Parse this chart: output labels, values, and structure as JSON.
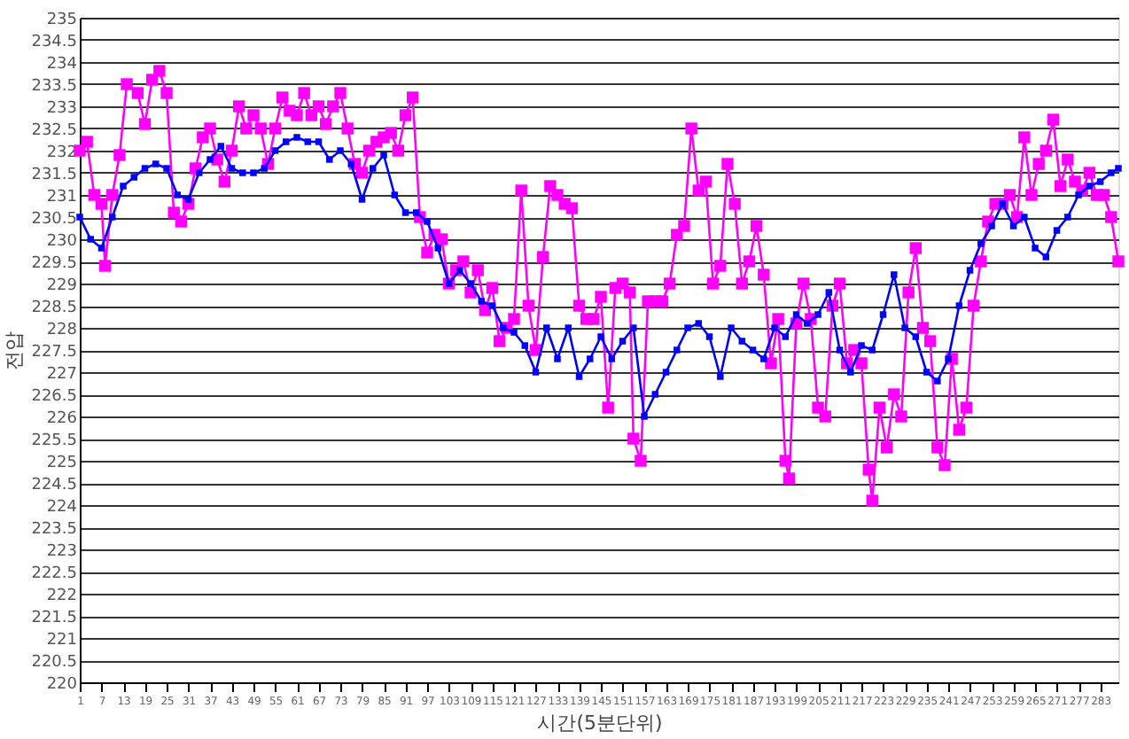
{
  "chart_data": {
    "type": "line",
    "xlabel": "시간(5분단위)",
    "ylabel": "전압",
    "xlim": [
      1,
      288
    ],
    "xticks": [
      1,
      7,
      13,
      19,
      25,
      31,
      37,
      43,
      49,
      55,
      61,
      67,
      73,
      79,
      85,
      91,
      97,
      103,
      109,
      115,
      121,
      127,
      133,
      139,
      145,
      151,
      157,
      163,
      169,
      175,
      181,
      187,
      193,
      199,
      205,
      211,
      217,
      223,
      229,
      235,
      241,
      247,
      253,
      259,
      265,
      271,
      277,
      283
    ],
    "ylim": [
      220,
      235
    ],
    "yticks": [
      220,
      220.5,
      221,
      221.5,
      222,
      222.5,
      223,
      223.5,
      224,
      224.5,
      225,
      225.5,
      226,
      226.5,
      227,
      227.5,
      228,
      228.5,
      229,
      229.5,
      230,
      230.5,
      231,
      231.5,
      232,
      232.5,
      233,
      233.5,
      234,
      234.5,
      235
    ],
    "grid": "y",
    "marker": "square",
    "line_style": "solid",
    "series": [
      {
        "color": "#ff00ff",
        "x": [
          1,
          3,
          5,
          7,
          8,
          10,
          12,
          14,
          17,
          19,
          21,
          23,
          25,
          27,
          29,
          31,
          33,
          35,
          37,
          39,
          41,
          43,
          45,
          47,
          49,
          51,
          53,
          55,
          57,
          59,
          61,
          63,
          65,
          67,
          69,
          71,
          73,
          75,
          77,
          79,
          81,
          83,
          85,
          87,
          89,
          91,
          93,
          95,
          97,
          99,
          101,
          103,
          105,
          107,
          109,
          111,
          113,
          115,
          117,
          119,
          121,
          123,
          125,
          127,
          129,
          131,
          133,
          135,
          137,
          139,
          141,
          143,
          145,
          147,
          149,
          151,
          153,
          154,
          156,
          158,
          160,
          162,
          164,
          166,
          168,
          170,
          172,
          174,
          176,
          178,
          180,
          182,
          184,
          186,
          188,
          190,
          192,
          194,
          196,
          197,
          199,
          201,
          203,
          205,
          207,
          209,
          211,
          213,
          215,
          217,
          219,
          220,
          222,
          224,
          226,
          228,
          230,
          232,
          234,
          236,
          238,
          240,
          242,
          244,
          246,
          248,
          250,
          252,
          254,
          256,
          258,
          260,
          262,
          264,
          266,
          268,
          270,
          272,
          274,
          276,
          278,
          280,
          282,
          284,
          286,
          288
        ],
        "values": [
          232.0,
          232.2,
          231.0,
          230.8,
          229.4,
          231.0,
          231.9,
          233.5,
          233.3,
          232.6,
          233.6,
          233.8,
          233.3,
          230.6,
          230.4,
          230.8,
          231.6,
          232.3,
          232.5,
          231.8,
          231.3,
          232.0,
          233.0,
          232.5,
          232.8,
          232.5,
          231.7,
          232.5,
          233.2,
          232.9,
          232.8,
          233.3,
          232.8,
          233.0,
          232.6,
          233.0,
          233.3,
          232.5,
          231.7,
          231.5,
          232.0,
          232.2,
          232.3,
          232.4,
          232.0,
          232.8,
          233.2,
          230.5,
          229.7,
          230.1,
          230.0,
          229.0,
          229.3,
          229.5,
          228.8,
          229.3,
          228.4,
          228.9,
          227.7,
          228.0,
          228.2,
          231.1,
          228.5,
          227.5,
          229.6,
          231.2,
          231.0,
          230.8,
          230.7,
          228.5,
          228.2,
          228.2,
          228.7,
          226.2,
          228.9,
          229.0,
          228.8,
          225.5,
          225.0,
          228.6,
          228.6,
          228.6,
          229.0,
          230.1,
          230.3,
          232.5,
          231.1,
          231.3,
          229.0,
          229.4,
          231.7,
          230.8,
          229.0,
          229.5,
          230.3,
          229.2,
          227.2,
          228.2,
          225.0,
          224.6,
          228.1,
          229.0,
          228.2,
          226.2,
          226.0,
          228.5,
          229.0,
          227.2,
          227.5,
          227.2,
          224.8,
          224.1,
          226.2,
          225.3,
          226.5,
          226.0,
          228.8,
          229.8,
          228.0,
          227.7,
          225.3,
          224.9,
          227.3,
          225.7,
          226.2,
          228.5,
          229.5,
          230.4,
          230.8,
          230.8,
          231.0,
          230.5,
          232.3,
          231.0,
          231.7,
          232.0,
          232.7,
          231.2,
          231.8,
          231.3,
          231.1,
          231.5,
          231.0,
          231.0,
          230.5,
          229.5
        ]
      },
      {
        "color": "#0000ff",
        "x": [
          1,
          4,
          7,
          10,
          13,
          16,
          19,
          22,
          25,
          28,
          31,
          34,
          37,
          40,
          43,
          46,
          49,
          52,
          55,
          58,
          61,
          64,
          67,
          70,
          73,
          76,
          79,
          82,
          85,
          88,
          91,
          94,
          97,
          100,
          103,
          106,
          109,
          112,
          115,
          118,
          121,
          124,
          127,
          130,
          133,
          136,
          139,
          142,
          145,
          148,
          151,
          154,
          157,
          160,
          163,
          166,
          169,
          172,
          175,
          178,
          181,
          184,
          187,
          190,
          193,
          196,
          199,
          202,
          205,
          208,
          211,
          214,
          217,
          220,
          223,
          226,
          229,
          232,
          235,
          238,
          241,
          244,
          247,
          250,
          253,
          256,
          259,
          262,
          265,
          268,
          271,
          274,
          277,
          280,
          283,
          286,
          288
        ],
        "values": [
          230.5,
          230.0,
          229.8,
          230.5,
          231.2,
          231.4,
          231.6,
          231.7,
          231.6,
          231.0,
          230.9,
          231.5,
          231.8,
          232.1,
          231.6,
          231.5,
          231.5,
          231.6,
          232.0,
          232.2,
          232.3,
          232.2,
          232.2,
          231.8,
          232.0,
          231.7,
          230.9,
          231.6,
          231.9,
          231.0,
          230.6,
          230.6,
          230.4,
          229.8,
          229.0,
          229.3,
          229.0,
          228.6,
          228.5,
          228.0,
          227.9,
          227.6,
          227.0,
          228.0,
          227.3,
          228.0,
          226.9,
          227.3,
          227.8,
          227.3,
          227.7,
          228.0,
          226.0,
          226.5,
          227.0,
          227.5,
          228.0,
          228.1,
          227.8,
          226.9,
          228.0,
          227.7,
          227.5,
          227.3,
          228.0,
          227.8,
          228.3,
          228.1,
          228.3,
          228.8,
          227.5,
          227.0,
          227.6,
          227.5,
          228.3,
          229.2,
          228.0,
          227.8,
          227.0,
          226.8,
          227.3,
          228.5,
          229.3,
          229.9,
          230.3,
          230.8,
          230.3,
          230.5,
          229.8,
          229.6,
          230.2,
          230.5,
          231.0,
          231.2,
          231.3,
          231.5,
          231.6
        ]
      }
    ]
  }
}
